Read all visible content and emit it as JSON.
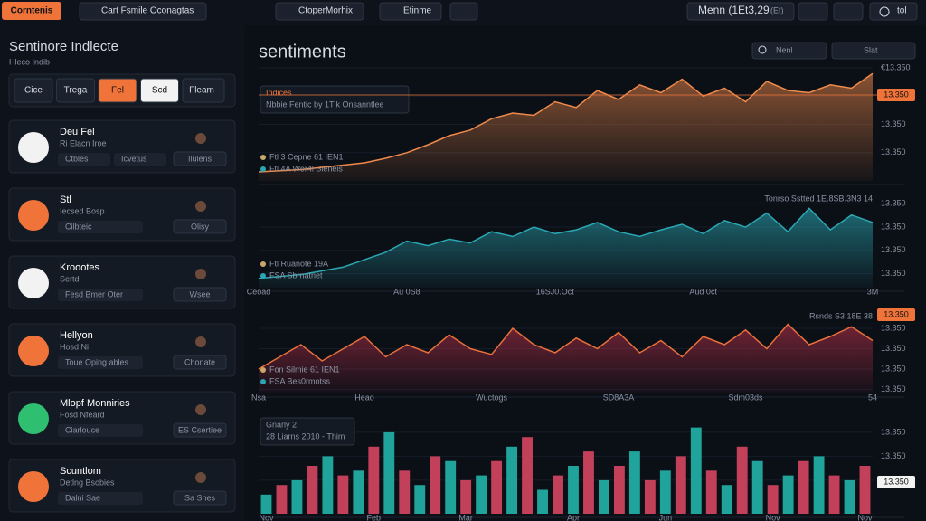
{
  "header": {
    "logo": "Corntenis",
    "tab": "Cart Fsmile Oconagtas",
    "menu": [
      "CtoperMorhix",
      "Etinme"
    ],
    "price": "Menn (1Et3,29",
    "price_note": "(Et)",
    "action": "tol"
  },
  "sidebar": {
    "title": "Sentinore Indlecte",
    "subtitle": "Hleco Indib",
    "filters": [
      "Cice",
      "Trega",
      "Fel",
      "Scd",
      "Fleam"
    ],
    "cards": [
      {
        "name": "Deu Fel",
        "sub": "Ri Elacn Iroe",
        "tags": [
          "Ctbles",
          "Icvetus"
        ],
        "button": "Ilulens",
        "icon": "#f2f2f2"
      },
      {
        "name": "Stl",
        "sub": "Iecsed Bosp",
        "tags": [
          "Cilbteic"
        ],
        "button": "Olisy",
        "icon": "#f0743a"
      },
      {
        "name": "Kroootes",
        "sub": "Sertd",
        "tags": [
          "Fesd Bmer Oter"
        ],
        "button": "Wsee",
        "icon": "#f2f2f2"
      },
      {
        "name": "Hellyon",
        "sub": "Hosd Ni",
        "tags": [
          "Toue Oping ables"
        ],
        "button": "Chonate",
        "icon": "#f0743a"
      },
      {
        "name": "Mlopf Monniries",
        "sub": "Fosd Nfeard",
        "tags": [
          "Ciarlouce"
        ],
        "button": "ES Csertiee",
        "icon": "#2fbf71"
      },
      {
        "name": "Scuntlom",
        "sub": "Detlng Bsobies",
        "tags": [
          "Dalni Sae"
        ],
        "button": "Sa Snes",
        "icon": "#f0743a"
      }
    ]
  },
  "toolbar": {
    "search": "Nenl",
    "select": "Slat"
  },
  "chart_data": [
    {
      "type": "area",
      "title": "sentiments",
      "color": "#f08a4b",
      "legend_box": [
        "Indices",
        "Nbbie Fentic by 1Tlk Onsanntlee"
      ],
      "annotations": [
        "Ftl 3 Cepne 61 IEN1",
        "Ftl 4A Wer4l Sleneis"
      ],
      "last_label": "13.350",
      "categories": [
        null,
        null,
        null,
        null,
        null,
        null,
        null,
        null,
        null,
        null,
        null,
        null,
        null,
        null,
        null,
        null,
        null,
        null,
        null,
        null,
        null,
        null,
        null,
        null,
        null,
        null,
        null,
        null,
        null,
        null
      ],
      "values": [
        8,
        9,
        10,
        12,
        14,
        16,
        20,
        25,
        32,
        40,
        45,
        55,
        60,
        58,
        70,
        65,
        80,
        72,
        85,
        78,
        90,
        75,
        82,
        70,
        88,
        80,
        78,
        85,
        82,
        95
      ],
      "ylim": [
        0,
        100
      ],
      "yticks": [
        {
          "value": 100,
          "label": "€13.350"
        },
        {
          "value": 75,
          "label": "13.350"
        },
        {
          "value": 50,
          "label": "13.350"
        },
        {
          "value": 25,
          "label": "13.350"
        }
      ]
    },
    {
      "type": "area",
      "color": "#2aa7b3",
      "annotations": [
        "Ftl Ruanote 19A",
        "FSA Sbrnatnet"
      ],
      "top_note": "Tonrso Sstted 1E.8SB.3N3 14",
      "categories": [
        "Ceoad",
        null,
        null,
        null,
        null,
        null,
        null,
        "Au 0S8",
        null,
        null,
        null,
        null,
        null,
        null,
        "16SJ0.Oct",
        null,
        null,
        null,
        null,
        null,
        null,
        "Aud 0ct",
        null,
        null,
        null,
        null,
        null,
        null,
        null,
        "3M"
      ],
      "values": [
        10,
        12,
        14,
        18,
        22,
        30,
        38,
        50,
        45,
        52,
        48,
        60,
        55,
        65,
        58,
        62,
        70,
        60,
        55,
        62,
        68,
        58,
        72,
        65,
        80,
        60,
        85,
        62,
        78,
        70
      ],
      "ylim": [
        0,
        100
      ],
      "yticks": [
        {
          "value": 90,
          "label": "13.350"
        },
        {
          "value": 65,
          "label": "13.350"
        },
        {
          "value": 40,
          "label": "13.350"
        },
        {
          "value": 15,
          "label": "13.350"
        }
      ]
    },
    {
      "type": "area",
      "color": "#e8703a",
      "annotations": [
        "Fon Silmie 61 IEN1",
        "FSA Bes0rmotss"
      ],
      "top_note": "Rsnds S3 18E 38",
      "last_label": "13.350",
      "categories": [
        "Nsa",
        null,
        null,
        null,
        null,
        "Heao",
        null,
        null,
        null,
        null,
        null,
        "Wuctogs",
        null,
        null,
        null,
        null,
        null,
        "SD8A3A",
        null,
        null,
        null,
        null,
        null,
        "Sdm03ds",
        null,
        null,
        null,
        null,
        null,
        "54"
      ],
      "values": [
        30,
        45,
        60,
        40,
        55,
        70,
        45,
        60,
        50,
        72,
        55,
        48,
        80,
        60,
        50,
        68,
        55,
        75,
        50,
        65,
        45,
        70,
        60,
        78,
        55,
        85,
        60,
        70,
        82,
        65
      ],
      "ylim": [
        0,
        100
      ],
      "yticks": [
        {
          "value": 80,
          "label": "13.350"
        },
        {
          "value": 55,
          "label": "13.350"
        },
        {
          "value": 30,
          "label": "13.350"
        },
        {
          "value": 5,
          "label": "13.350"
        }
      ]
    },
    {
      "type": "bar",
      "legend_box": [
        "Gnarly 2",
        "28 Liarns 2010 - Thim"
      ],
      "last_label": "13.350",
      "categories": [
        "Nov",
        null,
        null,
        null,
        null,
        null,
        null,
        "Feb",
        null,
        null,
        null,
        null,
        null,
        "Mar",
        null,
        null,
        null,
        null,
        null,
        null,
        "Apr",
        null,
        null,
        null,
        null,
        null,
        "Jun",
        null,
        null,
        null,
        null,
        null,
        null,
        "Nov",
        null,
        null,
        null,
        null,
        null,
        "Nov"
      ],
      "series": [
        {
          "color": "#1fa39a",
          "values": [
            20,
            null,
            35,
            null,
            60,
            null,
            45,
            null,
            85,
            null,
            30,
            null,
            55,
            null,
            40,
            null,
            70,
            null,
            25,
            null,
            50,
            null,
            35,
            null,
            65,
            null,
            45,
            null,
            90,
            null,
            30,
            null,
            55,
            null,
            40,
            null,
            60,
            null,
            35,
            null
          ]
        },
        {
          "color": "#c2405a",
          "values": [
            null,
            30,
            null,
            50,
            null,
            40,
            null,
            70,
            null,
            45,
            null,
            60,
            null,
            35,
            null,
            55,
            null,
            80,
            null,
            40,
            null,
            65,
            null,
            50,
            null,
            35,
            null,
            60,
            null,
            45,
            null,
            70,
            null,
            30,
            null,
            55,
            null,
            40,
            null,
            50
          ]
        }
      ],
      "ylim": [
        0,
        100
      ],
      "yticks": [
        {
          "value": 85,
          "label": "13.350"
        },
        {
          "value": 60,
          "label": "13.350"
        },
        {
          "value": 35,
          "label": "13.350"
        }
      ]
    }
  ]
}
